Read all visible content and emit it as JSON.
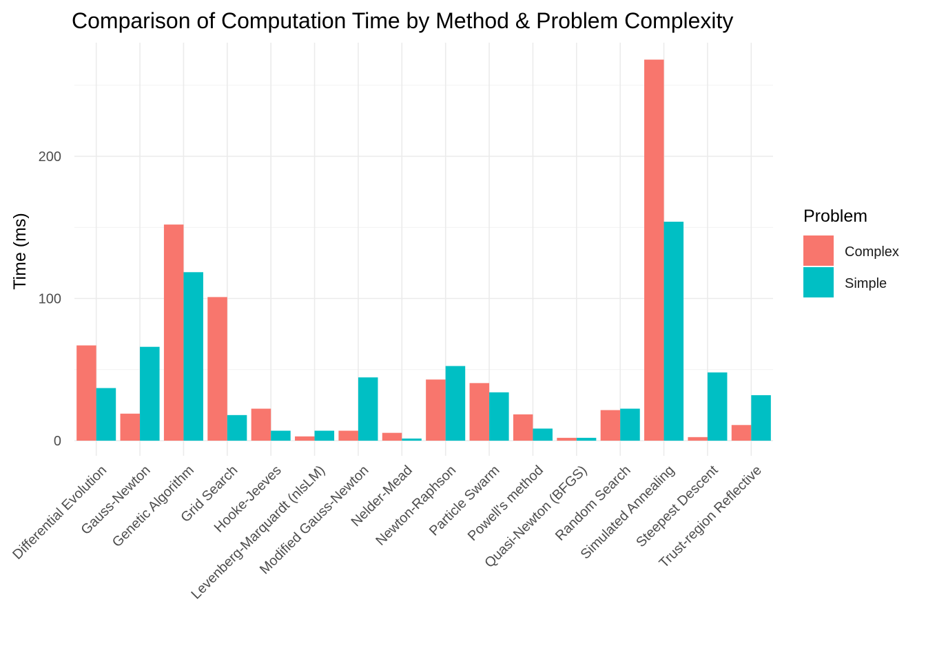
{
  "chart_data": {
    "type": "bar",
    "title": "Comparison of Computation Time by Method & Problem Complexity",
    "xlabel": "",
    "ylabel": "Time (ms)",
    "ylim": [
      -10,
      275
    ],
    "yticks": [
      0,
      100,
      200
    ],
    "grid": true,
    "legend": {
      "title": "Problem",
      "position": "right"
    },
    "categories": [
      "Differential Evolution",
      "Gauss-Newton",
      "Genetic Algorithm",
      "Grid Search",
      "Hooke-Jeeves",
      "Levenberg-Marquardt (nlsLM)",
      "Modified Gauss-Newton",
      "Nelder-Mead",
      "Newton-Raphson",
      "Particle Swarm",
      "Powell's method",
      "Quasi-Newton (BFGS)",
      "Random Search",
      "Simulated Annealing",
      "Steepest Descent",
      "Trust-region Reflective"
    ],
    "series": [
      {
        "name": "Complex",
        "color": "#F8766D",
        "values": [
          67,
          19,
          152,
          101,
          22.5,
          3,
          7,
          5.5,
          43,
          40.5,
          18.5,
          2,
          21.5,
          268,
          2.5,
          11
        ]
      },
      {
        "name": "Simple",
        "color": "#00BFC4",
        "values": [
          37,
          66,
          118.5,
          18,
          7,
          7,
          44.5,
          1.5,
          52.5,
          34,
          8.5,
          2,
          22.5,
          154,
          48,
          32
        ]
      }
    ]
  }
}
